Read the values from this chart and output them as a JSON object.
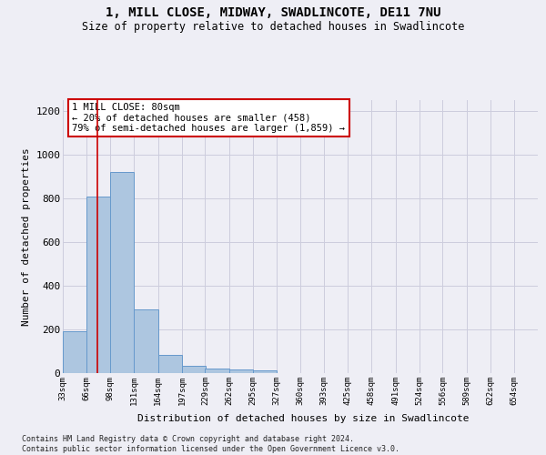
{
  "title1": "1, MILL CLOSE, MIDWAY, SWADLINCOTE, DE11 7NU",
  "title2": "Size of property relative to detached houses in Swadlincote",
  "xlabel": "Distribution of detached houses by size in Swadlincote",
  "ylabel": "Number of detached properties",
  "footnote1": "Contains HM Land Registry data © Crown copyright and database right 2024.",
  "footnote2": "Contains public sector information licensed under the Open Government Licence v3.0.",
  "bin_edges": [
    33,
    66,
    98,
    131,
    164,
    197,
    229,
    262,
    295,
    327,
    360,
    393,
    425,
    458,
    491,
    524,
    556,
    589,
    622,
    654,
    687
  ],
  "bar_heights": [
    193,
    810,
    920,
    293,
    85,
    35,
    20,
    18,
    12,
    0,
    0,
    0,
    0,
    0,
    0,
    0,
    0,
    0,
    0,
    0
  ],
  "bar_color": "#adc6e0",
  "bar_edge_color": "#6699cc",
  "grid_color": "#ccccdd",
  "vline_x": 80,
  "vline_color": "#cc0000",
  "annotation_text": "1 MILL CLOSE: 80sqm\n← 20% of detached houses are smaller (458)\n79% of semi-detached houses are larger (1,859) →",
  "annotation_box_color": "#ffffff",
  "annotation_box_edge": "#cc0000",
  "ylim": [
    0,
    1250
  ],
  "yticks": [
    0,
    200,
    400,
    600,
    800,
    1000,
    1200
  ],
  "background_color": "#eeeef5"
}
